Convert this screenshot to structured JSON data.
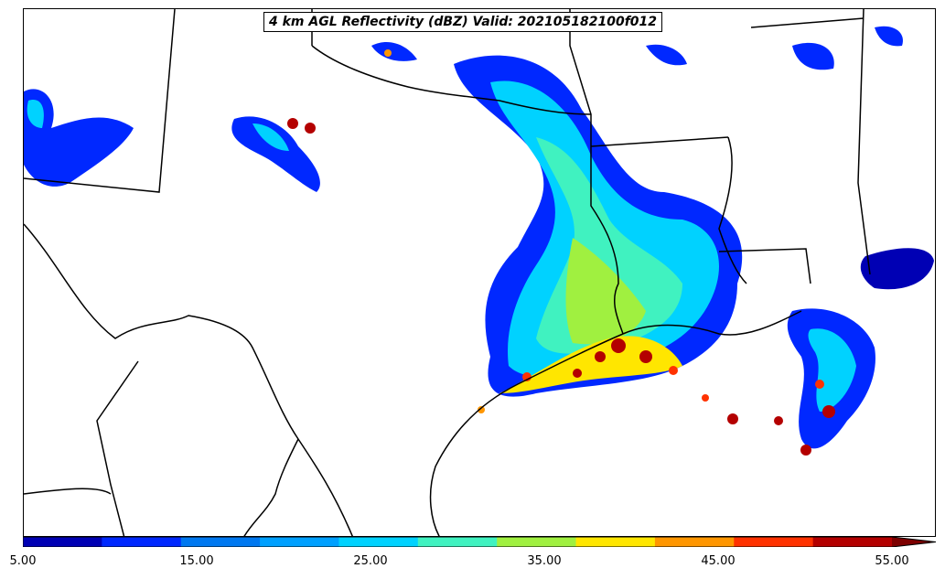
{
  "map": {
    "title": "4 km AGL Reflectivity (dBZ) Valid: 202105182100f012"
  },
  "colorbar": {
    "colors": [
      "#0000b4",
      "#0028ff",
      "#0078f0",
      "#00a0ff",
      "#00d2ff",
      "#40f2c0",
      "#a0f040",
      "#ffe600",
      "#ff9600",
      "#ff3200",
      "#b40000",
      "#7d0000"
    ],
    "tick_labels": [
      "5.00",
      "15.00",
      "25.00",
      "35.00",
      "45.00",
      "55.00"
    ]
  }
}
